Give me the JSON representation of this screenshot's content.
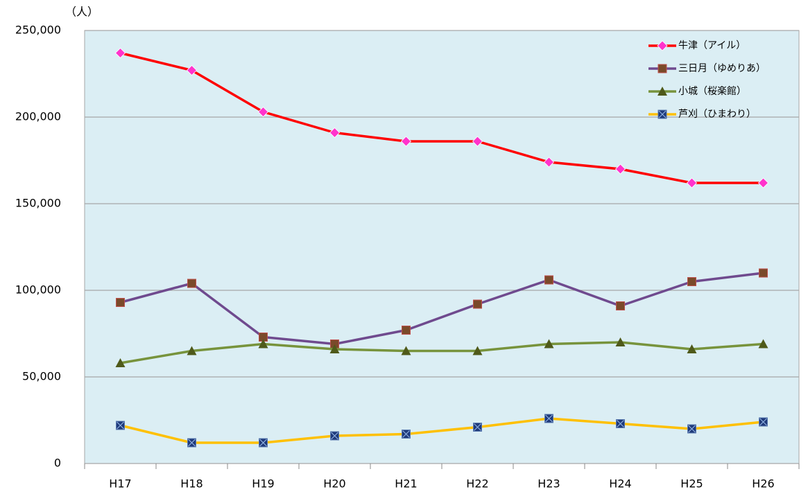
{
  "chart_data": {
    "type": "line",
    "y_unit": "（人）",
    "categories": [
      "H17",
      "H18",
      "H19",
      "H20",
      "H21",
      "H22",
      "H23",
      "H24",
      "H25",
      "H26"
    ],
    "series": [
      {
        "name": "牛津（アイル）",
        "color": "#ff0000",
        "marker": "diamond",
        "marker_color": "#ff33cc",
        "values": [
          237000,
          227000,
          203000,
          191000,
          186000,
          186000,
          174000,
          170000,
          162000,
          162000
        ]
      },
      {
        "name": "三日月（ゆめりあ）",
        "color": "#6f4a8e",
        "marker": "square",
        "marker_color": "#7a4a2a",
        "values": [
          93000,
          104000,
          73000,
          69000,
          77000,
          92000,
          106000,
          91000,
          105000,
          110000
        ]
      },
      {
        "name": "小城（桜楽館）",
        "color": "#77933c",
        "marker": "triangle",
        "marker_color": "#4f5a1a",
        "values": [
          58000,
          65000,
          69000,
          66000,
          65000,
          65000,
          69000,
          70000,
          66000,
          69000
        ]
      },
      {
        "name": "芦刈（ひまわり）",
        "color": "#ffc000",
        "marker": "xsquare",
        "marker_color": "#1f3a7a",
        "values": [
          22000,
          12000,
          12000,
          16000,
          17000,
          21000,
          26000,
          23000,
          20000,
          24000
        ]
      }
    ],
    "ylim": [
      0,
      250000
    ],
    "yticks": [
      0,
      {
        "value": 50000,
        "label": "50,000"
      },
      {
        "value": 100000,
        "label": "100,000"
      },
      {
        "value": 150000,
        "label": "150,000"
      },
      {
        "value": 200000,
        "label": "200,000"
      },
      {
        "value": 250000,
        "label": "250,000"
      }
    ],
    "grid": true,
    "legend": "top-right",
    "plot_background": "#dbeef4"
  }
}
